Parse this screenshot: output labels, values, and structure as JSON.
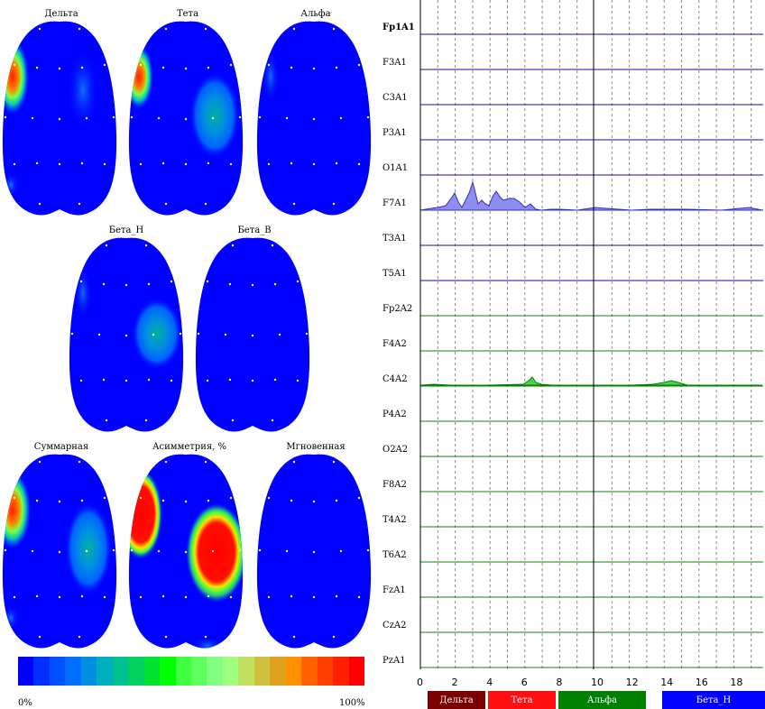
{
  "maps": [
    {
      "id": "delta",
      "title": "Дельта"
    },
    {
      "id": "theta",
      "title": "Тета"
    },
    {
      "id": "alpha",
      "title": "Альфа"
    },
    {
      "id": "beta_n",
      "title": "Бета_Н"
    },
    {
      "id": "beta_v",
      "title": "Бета_В"
    },
    {
      "id": "sum",
      "title": "Суммарная"
    },
    {
      "id": "asym",
      "title": "Асимметрия, %"
    },
    {
      "id": "inst",
      "title": "Мгновенная"
    }
  ],
  "colorbar": {
    "min_label": "0%",
    "max_label": "100%",
    "colors": [
      "#0000ff",
      "#0030ff",
      "#0050ff",
      "#0070ff",
      "#0090e0",
      "#00b0c0",
      "#00c090",
      "#00d060",
      "#00e030",
      "#00ff00",
      "#40ff40",
      "#60ff60",
      "#80ff80",
      "#a0ff80",
      "#c0e060",
      "#d0c040",
      "#e0a020",
      "#ff9000",
      "#ff6000",
      "#ff4000",
      "#ff2000",
      "#ff0000"
    ]
  },
  "channels": [
    "Fp1A1",
    "F3A1",
    "C3A1",
    "P3A1",
    "O1A1",
    "F7A1",
    "T3A1",
    "T5A1",
    "Fp2A2",
    "F4A2",
    "C4A2",
    "P4A2",
    "O2A2",
    "F8A2",
    "T4A2",
    "T6A2",
    "FzA1",
    "CzA2",
    "PzA1"
  ],
  "x_ticks": [
    "0",
    "2",
    "4",
    "6",
    "8",
    "10",
    "12",
    "14",
    "16",
    "18"
  ],
  "bands": [
    {
      "label": "Дельта",
      "color": "#7a0000"
    },
    {
      "label": "Тета",
      "color": "#ff1010"
    },
    {
      "label": "Альфа",
      "color": "#008000"
    },
    {
      "label": "Бета_Н",
      "color": "#0000ff"
    }
  ]
}
